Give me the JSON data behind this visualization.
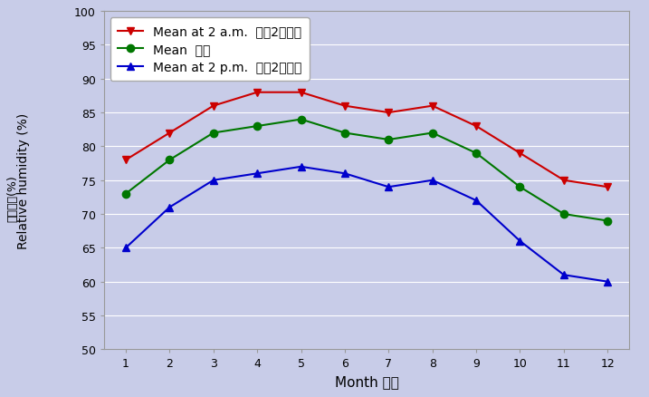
{
  "months": [
    1,
    2,
    3,
    4,
    5,
    6,
    7,
    8,
    9,
    10,
    11,
    12
  ],
  "mean_2am": [
    78,
    82,
    86,
    88,
    88,
    86,
    85,
    86,
    83,
    79,
    75,
    74
  ],
  "mean": [
    73,
    78,
    82,
    83,
    84,
    82,
    81,
    82,
    79,
    74,
    70,
    69
  ],
  "mean_2pm": [
    65,
    71,
    75,
    76,
    77,
    76,
    74,
    75,
    72,
    66,
    61,
    60
  ],
  "color_2am": "#cc0000",
  "color_mean": "#007700",
  "color_2pm": "#0000cc",
  "bg_color": "#c8cce8",
  "plot_bg_color": "#c8cce8",
  "ylim": [
    50,
    100
  ],
  "yticks": [
    50,
    55,
    60,
    65,
    70,
    75,
    80,
    85,
    90,
    95,
    100
  ],
  "xlabel": "Month 月份",
  "ylabel_en": "Relative humidity (%)",
  "ylabel_zh": "相對濕度(%)",
  "legend_2am": "Mean at 2 a.m.  上卆2時平均",
  "legend_mean": "Mean  平均",
  "legend_2pm": "Mean at 2 p.m.  下卆2時平均",
  "grid_color": "#ffffff",
  "spine_color": "#999999"
}
